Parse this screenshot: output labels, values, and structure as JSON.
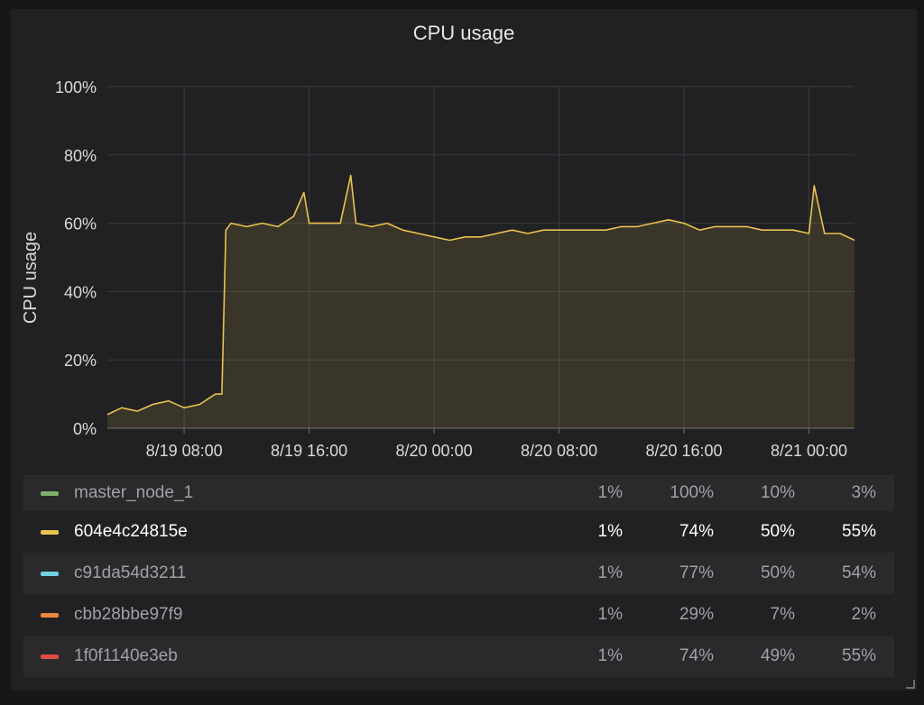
{
  "panel": {
    "title": "CPU usage"
  },
  "chart_data": {
    "type": "area",
    "title": "CPU usage",
    "ylabel": "CPU usage",
    "xlabel": "",
    "ylim": [
      0,
      100
    ],
    "y_ticks": [
      "0%",
      "20%",
      "40%",
      "60%",
      "80%",
      "100%"
    ],
    "x_ticks": [
      "8/19 08:00",
      "8/19 16:00",
      "8/20 00:00",
      "8/20 08:00",
      "8/20 16:00",
      "8/21 00:00"
    ],
    "x_range": [
      "8/19 03:05",
      "8/21 02:55"
    ],
    "grid": true,
    "series": [
      {
        "name": "604e4c24815e",
        "color": "#eac24f",
        "points": [
          [
            "8/19 03:05",
            4
          ],
          [
            "8/19 04:00",
            6
          ],
          [
            "8/19 05:00",
            5
          ],
          [
            "8/19 06:00",
            7
          ],
          [
            "8/19 07:00",
            8
          ],
          [
            "8/19 08:00",
            6
          ],
          [
            "8/19 09:00",
            7
          ],
          [
            "8/19 10:00",
            10
          ],
          [
            "8/19 10:25",
            10
          ],
          [
            "8/19 10:40",
            58
          ],
          [
            "8/19 11:00",
            60
          ],
          [
            "8/19 12:00",
            59
          ],
          [
            "8/19 13:00",
            60
          ],
          [
            "8/19 14:00",
            59
          ],
          [
            "8/19 15:00",
            62
          ],
          [
            "8/19 15:40",
            69
          ],
          [
            "8/19 16:00",
            60
          ],
          [
            "8/19 17:00",
            60
          ],
          [
            "8/19 18:00",
            60
          ],
          [
            "8/19 18:40",
            74
          ],
          [
            "8/19 19:00",
            60
          ],
          [
            "8/19 20:00",
            59
          ],
          [
            "8/19 21:00",
            60
          ],
          [
            "8/19 22:00",
            58
          ],
          [
            "8/19 23:00",
            57
          ],
          [
            "8/20 00:00",
            56
          ],
          [
            "8/20 01:00",
            55
          ],
          [
            "8/20 02:00",
            56
          ],
          [
            "8/20 03:00",
            56
          ],
          [
            "8/20 04:00",
            57
          ],
          [
            "8/20 05:00",
            58
          ],
          [
            "8/20 06:00",
            57
          ],
          [
            "8/20 07:00",
            58
          ],
          [
            "8/20 08:00",
            58
          ],
          [
            "8/20 09:00",
            58
          ],
          [
            "8/20 10:00",
            58
          ],
          [
            "8/20 11:00",
            58
          ],
          [
            "8/20 12:00",
            59
          ],
          [
            "8/20 13:00",
            59
          ],
          [
            "8/20 14:00",
            60
          ],
          [
            "8/20 15:00",
            61
          ],
          [
            "8/20 16:00",
            60
          ],
          [
            "8/20 17:00",
            58
          ],
          [
            "8/20 18:00",
            59
          ],
          [
            "8/20 19:00",
            59
          ],
          [
            "8/20 20:00",
            59
          ],
          [
            "8/20 21:00",
            58
          ],
          [
            "8/20 22:00",
            58
          ],
          [
            "8/20 23:00",
            58
          ],
          [
            "8/21 00:00",
            57
          ],
          [
            "8/21 00:20",
            71
          ],
          [
            "8/21 01:00",
            57
          ],
          [
            "8/21 02:00",
            57
          ],
          [
            "8/21 02:55",
            55
          ]
        ]
      }
    ]
  },
  "legend": {
    "rows": [
      {
        "name": "master_node_1",
        "color": "#7eb26d",
        "values": [
          "1%",
          "100%",
          "10%",
          "3%"
        ],
        "style": "alt"
      },
      {
        "name": "604e4c24815e",
        "color": "#eac24f",
        "values": [
          "1%",
          "74%",
          "50%",
          "55%"
        ],
        "style": "highlight"
      },
      {
        "name": "c91da54d3211",
        "color": "#6ed0e0",
        "values": [
          "1%",
          "77%",
          "50%",
          "54%"
        ],
        "style": "alt"
      },
      {
        "name": "cbb28bbe97f9",
        "color": "#ef843c",
        "values": [
          "1%",
          "29%",
          "7%",
          "2%"
        ],
        "style": ""
      },
      {
        "name": "1f0f1140e3eb",
        "color": "#e24d42",
        "values": [
          "1%",
          "74%",
          "49%",
          "55%"
        ],
        "style": "alt"
      }
    ]
  }
}
